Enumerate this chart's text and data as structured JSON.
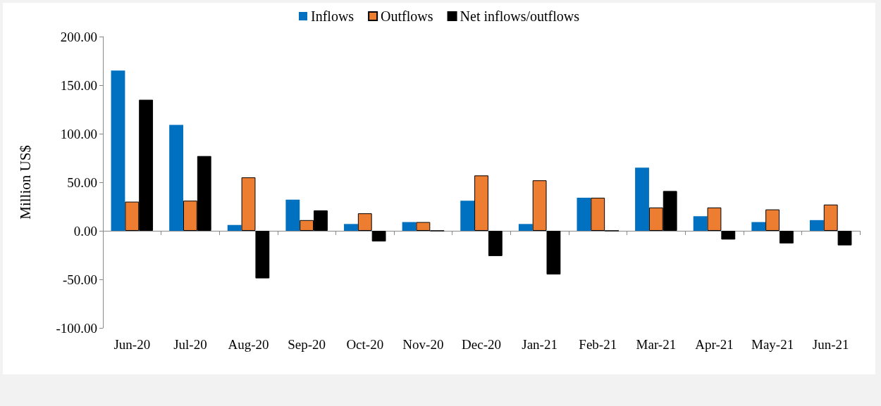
{
  "chart_data": {
    "type": "bar",
    "ylabel": "Million US$",
    "categories": [
      "Jun-20",
      "Jul-20",
      "Aug-20",
      "Sep-20",
      "Oct-20",
      "Nov-20",
      "Dec-20",
      "Jan-21",
      "Feb-21",
      "Mar-21",
      "Apr-21",
      "May-21",
      "Jun-21"
    ],
    "series": [
      {
        "name": "Inflows",
        "color": "#0070c0",
        "values": [
          165,
          109,
          6,
          32,
          7,
          9,
          31,
          7,
          34,
          65,
          15,
          9,
          11
        ]
      },
      {
        "name": "Outflows",
        "color": "#ed7d31",
        "values": [
          30,
          31,
          55,
          11,
          18,
          9,
          57,
          52,
          34,
          24,
          24,
          22,
          27
        ]
      },
      {
        "name": "Net inflows/outflows",
        "color": "#000000",
        "values": [
          135,
          77,
          -49,
          21,
          -11,
          0,
          -26,
          -45,
          0,
          41,
          -9,
          -13,
          -15
        ]
      }
    ],
    "ylim": [
      -100,
      200
    ],
    "yticks": [
      {
        "value": -100,
        "label": "-100.00"
      },
      {
        "value": -50,
        "label": "-50.00"
      },
      {
        "value": 0,
        "label": "0.00"
      },
      {
        "value": 50,
        "label": "50.00"
      },
      {
        "value": 100,
        "label": "100.00"
      },
      {
        "value": 150,
        "label": "150.00"
      },
      {
        "value": 200,
        "label": "200.00"
      }
    ],
    "legend": "top"
  }
}
